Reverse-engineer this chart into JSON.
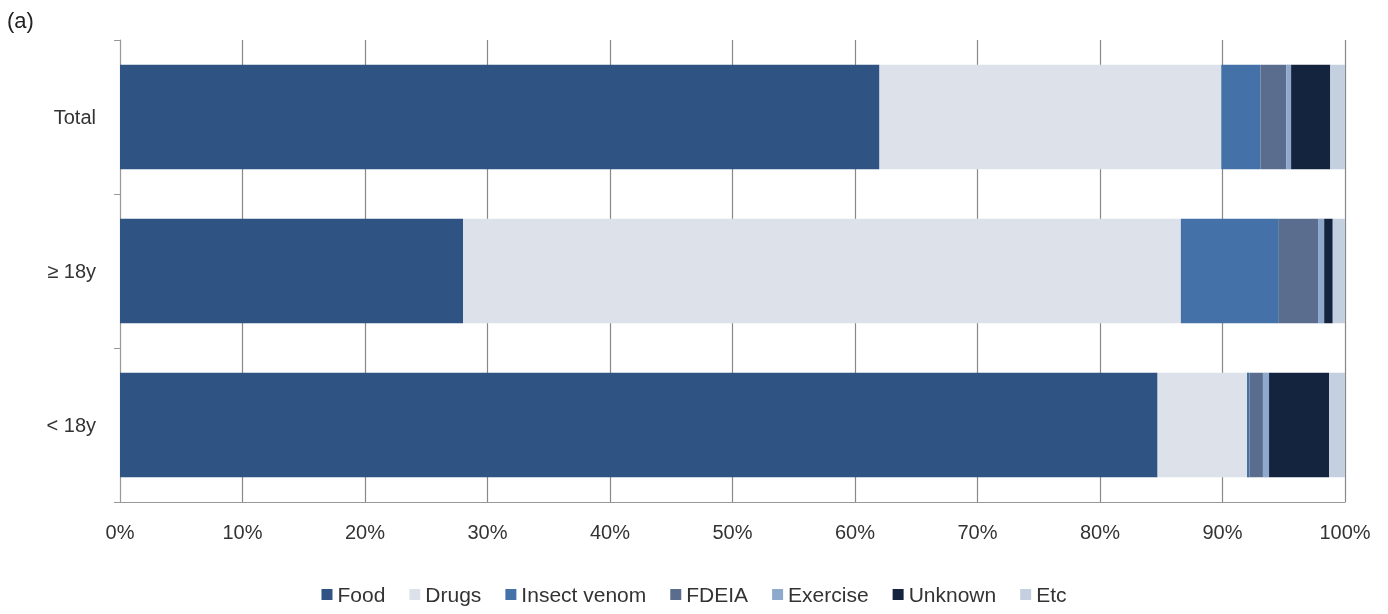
{
  "chart_data": {
    "type": "bar",
    "title": "(a)",
    "orientation": "horizontal",
    "stacked": true,
    "categories": [
      "Total",
      "≥ 18y",
      "< 18y"
    ],
    "series": [
      {
        "name": "Food",
        "color": "#2f5383",
        "values": [
          62.0,
          28.0,
          84.7
        ]
      },
      {
        "name": "Drugs",
        "color": "#dde2ea",
        "values": [
          27.9,
          58.6,
          7.3
        ]
      },
      {
        "name": "Insect venom",
        "color": "#4472a8",
        "values": [
          3.2,
          8.0,
          0.2
        ]
      },
      {
        "name": "FDEIA",
        "color": "#5a6d8e",
        "values": [
          2.1,
          3.2,
          1.1
        ]
      },
      {
        "name": "Exercise",
        "color": "#8fa9cc",
        "values": [
          0.4,
          0.5,
          0.5
        ]
      },
      {
        "name": "Unknown",
        "color": "#14243f",
        "values": [
          3.2,
          0.7,
          4.9
        ]
      },
      {
        "name": "Etc",
        "color": "#c4cfe0",
        "values": [
          1.2,
          1.0,
          1.3
        ]
      }
    ],
    "xlim": [
      0,
      100
    ],
    "xticks": [
      {
        "value": 0,
        "label": "0%"
      },
      {
        "value": 10,
        "label": "10%"
      },
      {
        "value": 20,
        "label": "20%"
      },
      {
        "value": 30,
        "label": "30%"
      },
      {
        "value": 40,
        "label": "40%"
      },
      {
        "value": 50,
        "label": "50%"
      },
      {
        "value": 60,
        "label": "60%"
      },
      {
        "value": 70,
        "label": "70%"
      },
      {
        "value": 80,
        "label": "80%"
      },
      {
        "value": 90,
        "label": "90%"
      },
      {
        "value": 100,
        "label": "100%"
      }
    ],
    "grid": "x",
    "legend": "bottom"
  }
}
